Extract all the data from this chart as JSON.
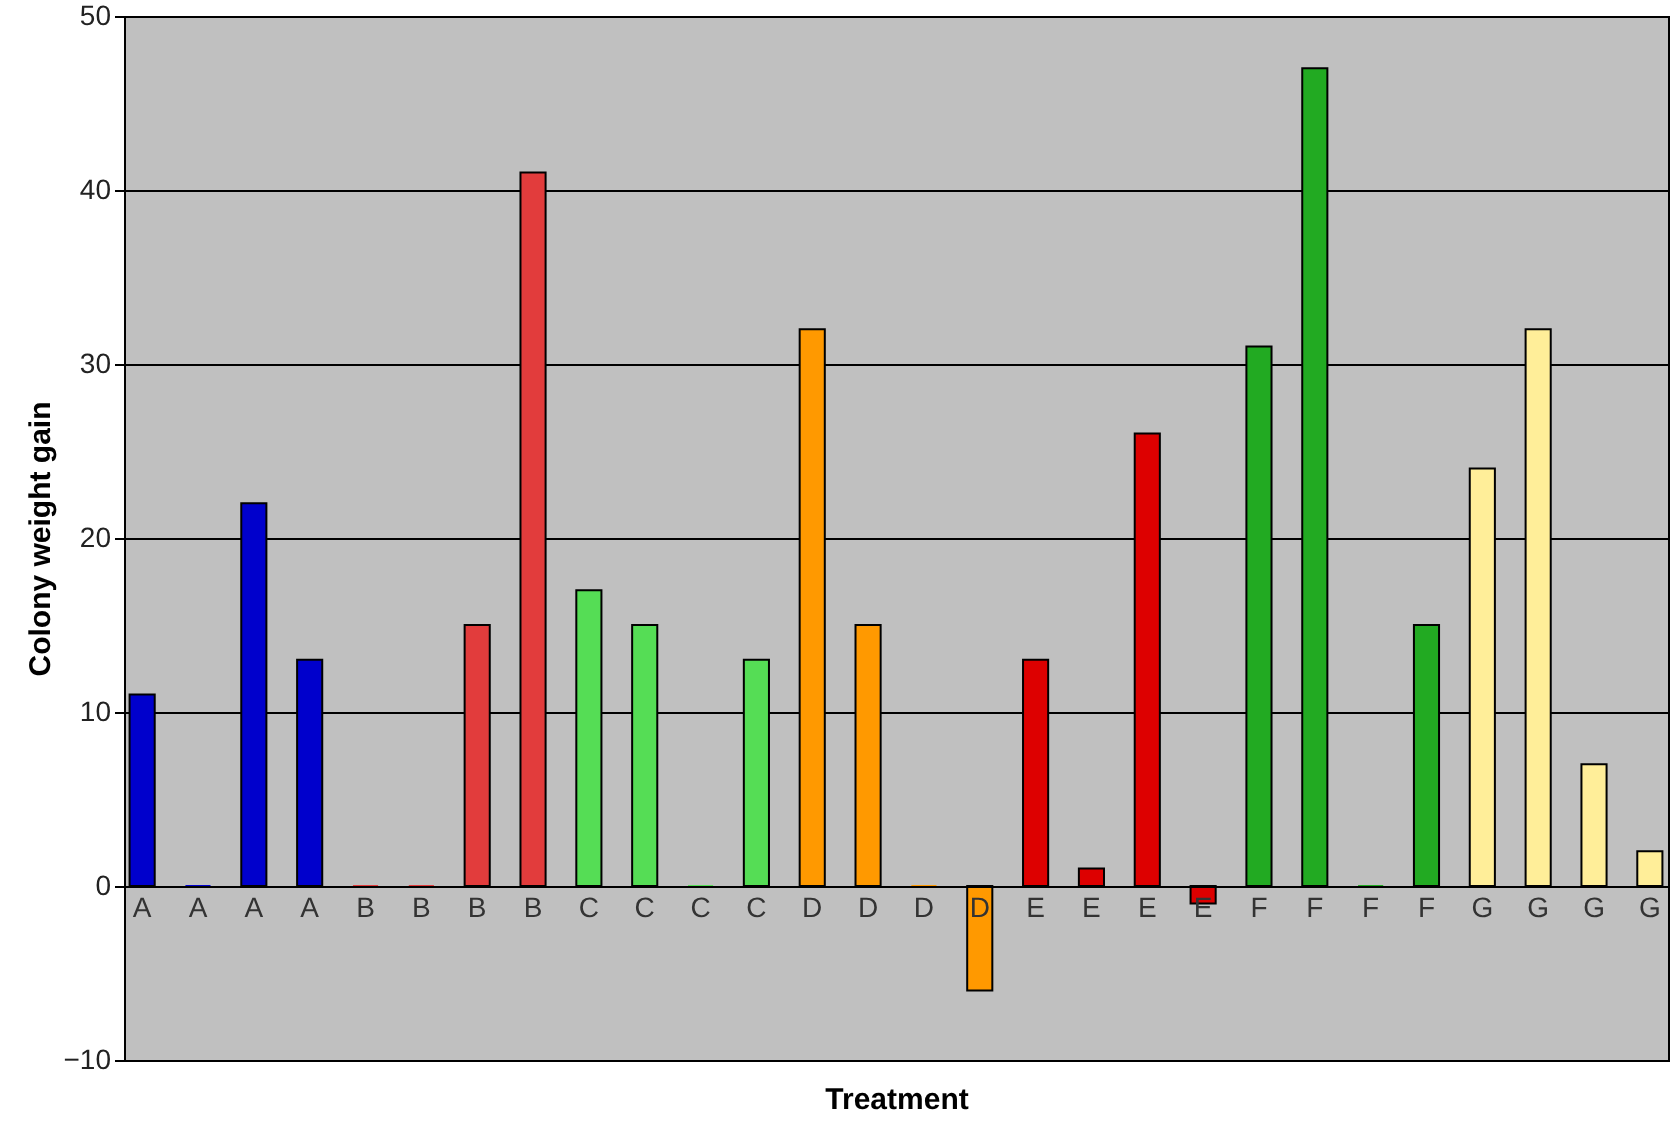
{
  "chart_data": {
    "type": "bar",
    "xlabel": "Treatment",
    "ylabel": "Colony weight gain",
    "categories": [
      "A",
      "A",
      "A",
      "A",
      "B",
      "B",
      "B",
      "B",
      "C",
      "C",
      "C",
      "C",
      "D",
      "D",
      "D",
      "D",
      "E",
      "E",
      "E",
      "E",
      "F",
      "F",
      "F",
      "F",
      "G",
      "G",
      "G",
      "G"
    ],
    "values": [
      11,
      0,
      22,
      13,
      0,
      0,
      15,
      41,
      17,
      15,
      0,
      13,
      32,
      15,
      0,
      -6,
      13,
      1,
      26,
      -1,
      31,
      47,
      0,
      15,
      24,
      32,
      7,
      2
    ],
    "colors": [
      "#0000cc",
      "#0000cc",
      "#0000cc",
      "#0000cc",
      "#e23c3c",
      "#e23c3c",
      "#e23c3c",
      "#e23c3c",
      "#55dd55",
      "#55dd55",
      "#55dd55",
      "#55dd55",
      "#ff9900",
      "#ff9900",
      "#ff9900",
      "#ff9900",
      "#dd0000",
      "#dd0000",
      "#dd0000",
      "#dd0000",
      "#22aa22",
      "#22aa22",
      "#22aa22",
      "#22aa22",
      "#ffee99",
      "#ffee99",
      "#ffee99",
      "#ffee99"
    ],
    "ylim": [
      -10,
      50
    ],
    "yticks": [
      -10,
      0,
      10,
      20,
      30,
      40,
      50
    ],
    "grid": "y"
  }
}
